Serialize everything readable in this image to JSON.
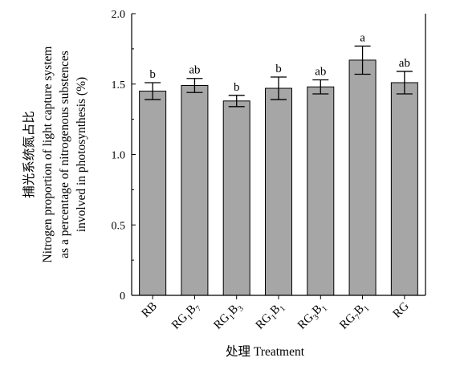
{
  "chart_data": {
    "type": "bar",
    "categories": [
      {
        "base": "RB",
        "parts": [
          [
            "RB",
            ""
          ]
        ]
      },
      {
        "base": "RG1B7",
        "parts": [
          [
            "RG",
            ""
          ],
          [
            "1",
            "sub"
          ],
          [
            "B",
            ""
          ],
          [
            "7",
            "sub"
          ]
        ]
      },
      {
        "base": "RG1B3",
        "parts": [
          [
            "RG",
            ""
          ],
          [
            "1",
            "sub"
          ],
          [
            "B",
            ""
          ],
          [
            "3",
            "sub"
          ]
        ]
      },
      {
        "base": "RG1B1",
        "parts": [
          [
            "RG",
            ""
          ],
          [
            "1",
            "sub"
          ],
          [
            "B",
            ""
          ],
          [
            "1",
            "sub"
          ]
        ]
      },
      {
        "base": "RG3B1",
        "parts": [
          [
            "RG",
            ""
          ],
          [
            "3",
            "sub"
          ],
          [
            "B",
            ""
          ],
          [
            "1",
            "sub"
          ]
        ]
      },
      {
        "base": "RG7B1",
        "parts": [
          [
            "RG",
            ""
          ],
          [
            "7",
            "sub"
          ],
          [
            "B",
            ""
          ],
          [
            "1",
            "sub"
          ]
        ]
      },
      {
        "base": "RG",
        "parts": [
          [
            "RG",
            ""
          ]
        ]
      }
    ],
    "values": [
      1.45,
      1.49,
      1.38,
      1.47,
      1.48,
      1.67,
      1.51
    ],
    "errors": [
      0.06,
      0.05,
      0.04,
      0.08,
      0.05,
      0.1,
      0.08
    ],
    "significance": [
      "b",
      "ab",
      "b",
      "b",
      "ab",
      "a",
      "ab"
    ],
    "ylim": [
      0,
      2.0
    ],
    "yticks": [
      "0",
      "0.5",
      "1.0",
      "1.5",
      "2.0"
    ],
    "ytick_values": [
      0,
      0.5,
      1.0,
      1.5,
      2.0
    ],
    "ylabel_lines": [
      "捕光系统氮占比",
      "Nitrogen proportion of light capture system",
      "as a percentage of nitrogenous substences",
      "involved in photosynthesis (%)"
    ],
    "xlabel": "处理 Treatment",
    "grid": false,
    "colors": {
      "bar": "#a6a6a6",
      "edge": "#000000"
    }
  }
}
